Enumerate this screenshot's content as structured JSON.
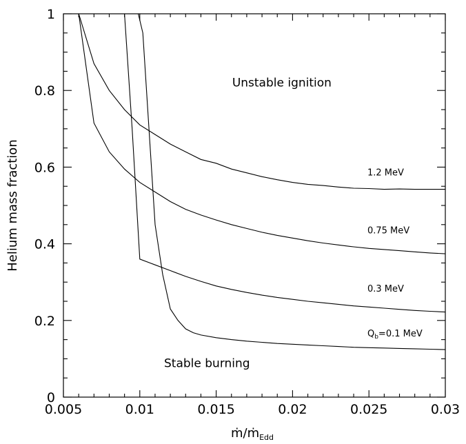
{
  "chart_data": {
    "type": "line",
    "title": "",
    "xlabel": "ṁ/ṁ",
    "xlabel_subscript": "Edd",
    "ylabel": "Helium mass fraction",
    "xlim": [
      0.005,
      0.03
    ],
    "ylim": [
      0,
      1
    ],
    "x_ticks": [
      0.005,
      0.01,
      0.015,
      0.02,
      0.025,
      0.03
    ],
    "x_tick_labels": [
      "0.005",
      "0.01",
      "0.015",
      "0.02",
      "0.025",
      "0.03"
    ],
    "y_ticks": [
      0,
      0.2,
      0.4,
      0.6,
      0.8,
      1
    ],
    "y_tick_labels": [
      "0",
      "0.2",
      "0.4",
      "0.6",
      "0.8",
      "1"
    ],
    "grid": false,
    "legend": "none",
    "annotations": [
      {
        "text": "Unstable ignition",
        "x": 0.0193,
        "y": 0.81
      },
      {
        "text": "Stable burning",
        "x": 0.0144,
        "y": 0.078
      }
    ],
    "series": [
      {
        "name": "1.2 MeV",
        "label_text": "1.2 MeV",
        "label_pos": {
          "x": 0.0249,
          "y": 0.578
        },
        "x": [
          0.006,
          0.007,
          0.008,
          0.009,
          0.01,
          0.011,
          0.012,
          0.013,
          0.014,
          0.015,
          0.016,
          0.017,
          0.018,
          0.019,
          0.02,
          0.021,
          0.022,
          0.023,
          0.024,
          0.025,
          0.026,
          0.027,
          0.028,
          0.029,
          0.03
        ],
        "values": [
          1.0,
          0.87,
          0.8,
          0.75,
          0.71,
          0.685,
          0.66,
          0.64,
          0.62,
          0.61,
          0.595,
          0.585,
          0.575,
          0.567,
          0.56,
          0.555,
          0.552,
          0.548,
          0.545,
          0.544,
          0.542,
          0.543,
          0.542,
          0.542,
          0.542
        ]
      },
      {
        "name": "0.75 MeV",
        "label_text": "0.75 MeV",
        "label_pos": {
          "x": 0.0249,
          "y": 0.427
        },
        "x": [
          0.006,
          0.007,
          0.008,
          0.009,
          0.01,
          0.011,
          0.012,
          0.013,
          0.014,
          0.015,
          0.016,
          0.017,
          0.018,
          0.019,
          0.02,
          0.021,
          0.022,
          0.023,
          0.024,
          0.025,
          0.026,
          0.027,
          0.028,
          0.029,
          0.03
        ],
        "values": [
          1.0,
          0.715,
          0.64,
          0.595,
          0.56,
          0.535,
          0.51,
          0.49,
          0.475,
          0.462,
          0.45,
          0.44,
          0.43,
          0.422,
          0.415,
          0.408,
          0.402,
          0.397,
          0.392,
          0.388,
          0.385,
          0.382,
          0.379,
          0.376,
          0.374
        ]
      },
      {
        "name": "0.3 MeV",
        "label_text": "0.3 MeV",
        "label_pos": {
          "x": 0.0249,
          "y": 0.275
        },
        "x": [
          0.009,
          0.0095,
          0.01,
          0.011,
          0.012,
          0.013,
          0.014,
          0.015,
          0.016,
          0.017,
          0.018,
          0.019,
          0.02,
          0.021,
          0.022,
          0.023,
          0.024,
          0.025,
          0.026,
          0.027,
          0.028,
          0.029,
          0.03
        ],
        "values": [
          1.0,
          0.7,
          0.36,
          0.345,
          0.33,
          0.315,
          0.302,
          0.29,
          0.281,
          0.273,
          0.266,
          0.26,
          0.255,
          0.25,
          0.246,
          0.242,
          0.238,
          0.235,
          0.232,
          0.229,
          0.226,
          0.224,
          0.222
        ]
      },
      {
        "name": "Qb=0.1 MeV",
        "label_text": "Q",
        "label_sub": "b",
        "label_rest": "=0.1 MeV",
        "label_pos": {
          "x": 0.0249,
          "y": 0.158
        },
        "x": [
          0.0099,
          0.0102,
          0.0106,
          0.011,
          0.0115,
          0.012,
          0.0125,
          0.013,
          0.0135,
          0.014,
          0.015,
          0.016,
          0.017,
          0.018,
          0.019,
          0.02,
          0.021,
          0.022,
          0.023,
          0.024,
          0.025,
          0.026,
          0.027,
          0.028,
          0.029,
          0.03
        ],
        "values": [
          1.0,
          0.95,
          0.7,
          0.45,
          0.32,
          0.23,
          0.2,
          0.178,
          0.168,
          0.162,
          0.155,
          0.15,
          0.146,
          0.143,
          0.14,
          0.138,
          0.136,
          0.134,
          0.132,
          0.13,
          0.129,
          0.128,
          0.127,
          0.126,
          0.125,
          0.124
        ]
      }
    ]
  }
}
